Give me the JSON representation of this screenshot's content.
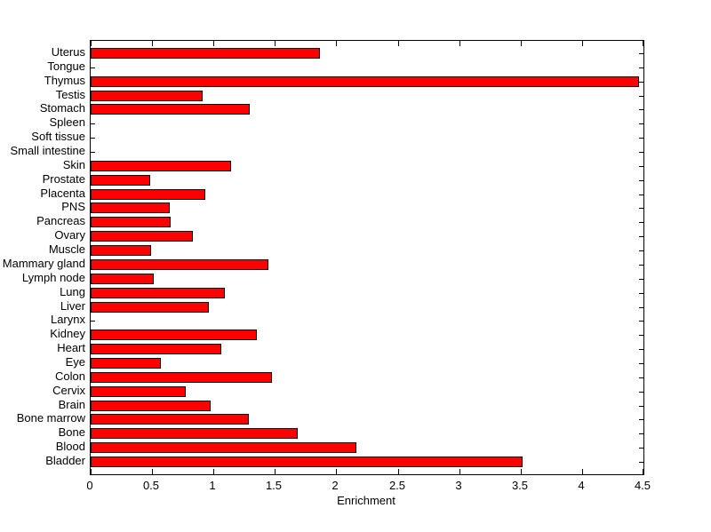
{
  "chart_data": {
    "type": "bar",
    "orientation": "horizontal",
    "title": "",
    "xlabel": "Enrichment",
    "ylabel": "",
    "xlim": [
      0,
      4.5
    ],
    "x_tick_values": [
      0,
      0.5,
      1,
      1.5,
      2,
      2.5,
      3,
      3.5,
      4,
      4.5
    ],
    "x_tick_labels": [
      "0",
      "0.5",
      "1",
      "1.5",
      "2",
      "2.5",
      "3",
      "3.5",
      "4",
      "4.5"
    ],
    "grid": "off",
    "legend": "none",
    "bar_color": "#ff0000",
    "bar_border_color": "#000000",
    "axis_color": "#000000",
    "background_color": "#ffffff",
    "categories": [
      "Uterus",
      "Tongue",
      "Thymus",
      "Testis",
      "Stomach",
      "Spleen",
      "Soft tissue",
      "Small intestine",
      "Skin",
      "Prostate",
      "Placenta",
      "PNS",
      "Pancreas",
      "Ovary",
      "Muscle",
      "Mammary gland",
      "Lymph node",
      "Lung",
      "Liver",
      "Larynx",
      "Kidney",
      "Heart",
      "Eye",
      "Colon",
      "Cervix",
      "Brain",
      "Bone marrow",
      "Bone",
      "Blood",
      "Bladder"
    ],
    "values": [
      1.85,
      0,
      4.45,
      0.9,
      1.28,
      0,
      0,
      0,
      1.13,
      0.47,
      0.92,
      0.63,
      0.64,
      0.82,
      0.48,
      1.43,
      0.5,
      1.08,
      0.95,
      0,
      1.34,
      1.05,
      0.56,
      1.46,
      0.76,
      0.96,
      1.27,
      1.67,
      2.15,
      3.5
    ]
  }
}
